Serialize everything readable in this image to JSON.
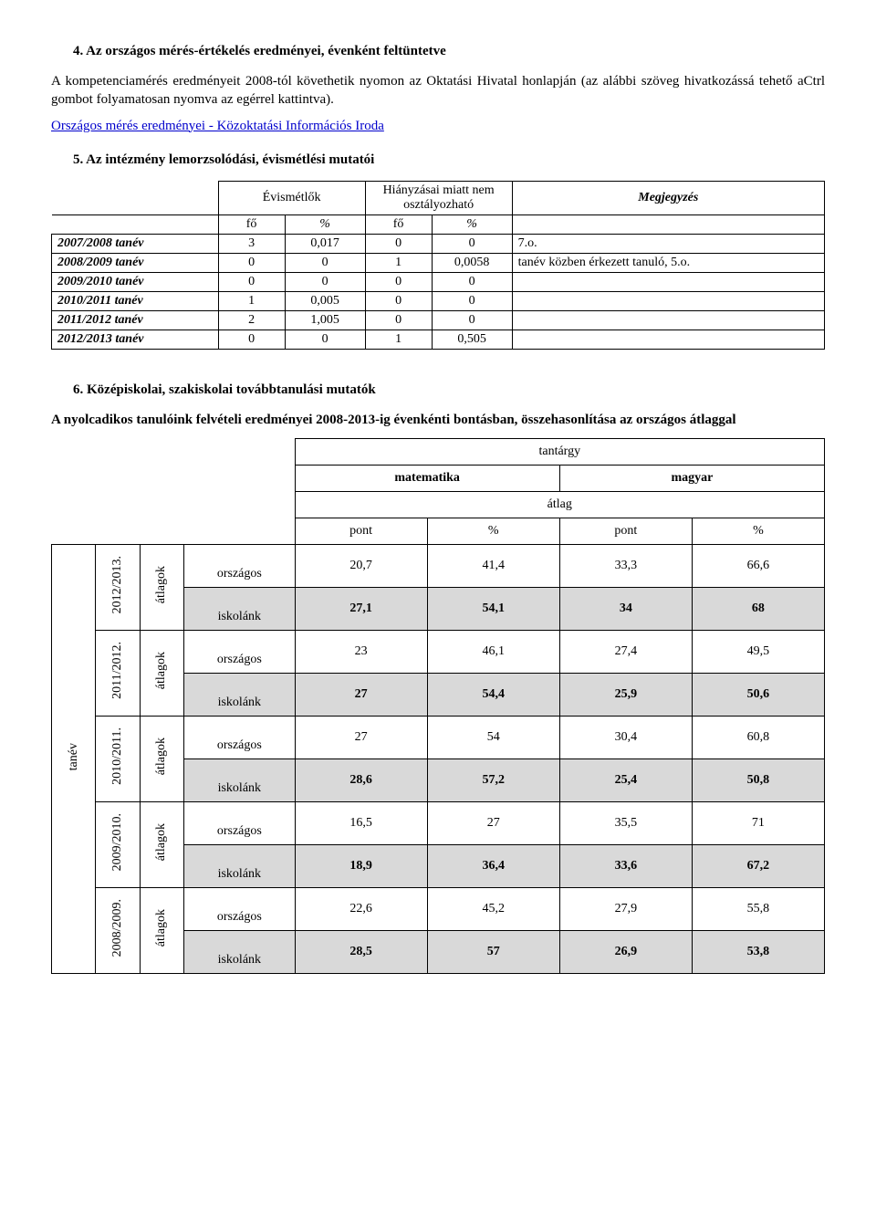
{
  "section4": {
    "heading": "4.   Az országos mérés-értékelés eredményei, évenként feltüntetve",
    "p1": "A kompetenciamérés eredményeit 2008-tól követhetik nyomon az Oktatási Hivatal honlapján (az alábbi szöveg hivatkozássá tehető aCtrl gombot folyamatosan nyomva az egérrel kattintva).",
    "link_text": "Országos mérés eredményei - Közoktatási Információs Iroda"
  },
  "section5": {
    "heading": "5.   Az intézmény lemorzsolódási, évismétlési mutatói",
    "table": {
      "col_evismetlok": "Évismétlők",
      "col_hianyzasai": "Hiányzásai miatt nem osztályozható",
      "col_megj": "Megjegyzés",
      "unit_fo": "fő",
      "unit_pct": "%",
      "rows": [
        {
          "label": "2007/2008 tanév",
          "a": "3",
          "b": "0,017",
          "c": "0",
          "d": "0",
          "note": "7.o."
        },
        {
          "label": "2008/2009 tanév",
          "a": "0",
          "b": "0",
          "c": "1",
          "d": "0,0058",
          "note": "tanév közben érkezett tanuló, 5.o."
        },
        {
          "label": "2009/2010 tanév",
          "a": "0",
          "b": "0",
          "c": "0",
          "d": "0",
          "note": ""
        },
        {
          "label": "2010/2011 tanév",
          "a": "1",
          "b": "0,005",
          "c": "0",
          "d": "0",
          "note": ""
        },
        {
          "label": "2011/2012 tanév",
          "a": "2",
          "b": "1,005",
          "c": "0",
          "d": "0",
          "note": ""
        },
        {
          "label": "2012/2013 tanév",
          "a": "0",
          "b": "0",
          "c": "1",
          "d": "0,505",
          "note": ""
        }
      ]
    }
  },
  "section6": {
    "heading": "6.   Középiskolai, szakiskolai továbbtanulási mutatók",
    "p1": "A nyolcadikos tanulóink felvételi eredményei 2008-2013-ig évenkénti bontásban, összehasonlítása az országos átlaggal",
    "table": {
      "h_tantargy": "tantárgy",
      "h_matematika": "matematika",
      "h_magyar": "magyar",
      "h_atlag": "átlag",
      "h_pont": "pont",
      "h_pct": "%",
      "v_tanev": "tanév",
      "v_atlagok": "átlagok",
      "row_orszagos": "országos",
      "row_iskolank": "iskolánk",
      "years": [
        {
          "year": "2012/2013.",
          "o": [
            "20,7",
            "41,4",
            "33,3",
            "66,6"
          ],
          "i": [
            "27,1",
            "54,1",
            "34",
            "68"
          ]
        },
        {
          "year": "2011/2012.",
          "o": [
            "23",
            "46,1",
            "27,4",
            "49,5"
          ],
          "i": [
            "27",
            "54,4",
            "25,9",
            "50,6"
          ]
        },
        {
          "year": "2010/2011.",
          "o": [
            "27",
            "54",
            "30,4",
            "60,8"
          ],
          "i": [
            "28,6",
            "57,2",
            "25,4",
            "50,8"
          ]
        },
        {
          "year": "2009/2010.",
          "o": [
            "16,5",
            "27",
            "35,5",
            "71"
          ],
          "i": [
            "18,9",
            "36,4",
            "33,6",
            "67,2"
          ]
        },
        {
          "year": "2008/2009.",
          "o": [
            "22,6",
            "45,2",
            "27,9",
            "55,8"
          ],
          "i": [
            "28,5",
            "57",
            "26,9",
            "53,8"
          ]
        }
      ]
    }
  }
}
